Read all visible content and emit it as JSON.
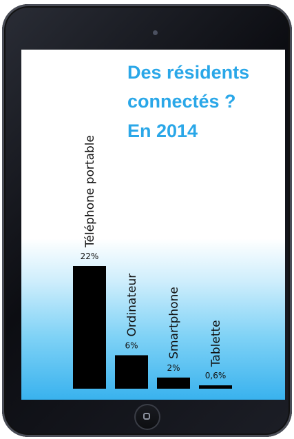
{
  "title_lines": [
    "Des résidents",
    "connectés ?",
    "En  2014"
  ],
  "chart_data": {
    "type": "bar",
    "title": "Des résidents connectés ? En 2014",
    "categories": [
      "Téléphone portable",
      "Ordinateur",
      "Smartphone",
      "Tablette"
    ],
    "values": [
      22,
      6,
      2,
      0.6
    ],
    "value_labels": [
      "22%",
      "6%",
      "2%",
      "0,6%"
    ],
    "unit": "%",
    "ylim": [
      0,
      22
    ],
    "grid": false,
    "legend": "none",
    "bar_color": "#000000",
    "title_color": "#2aa7e8"
  }
}
